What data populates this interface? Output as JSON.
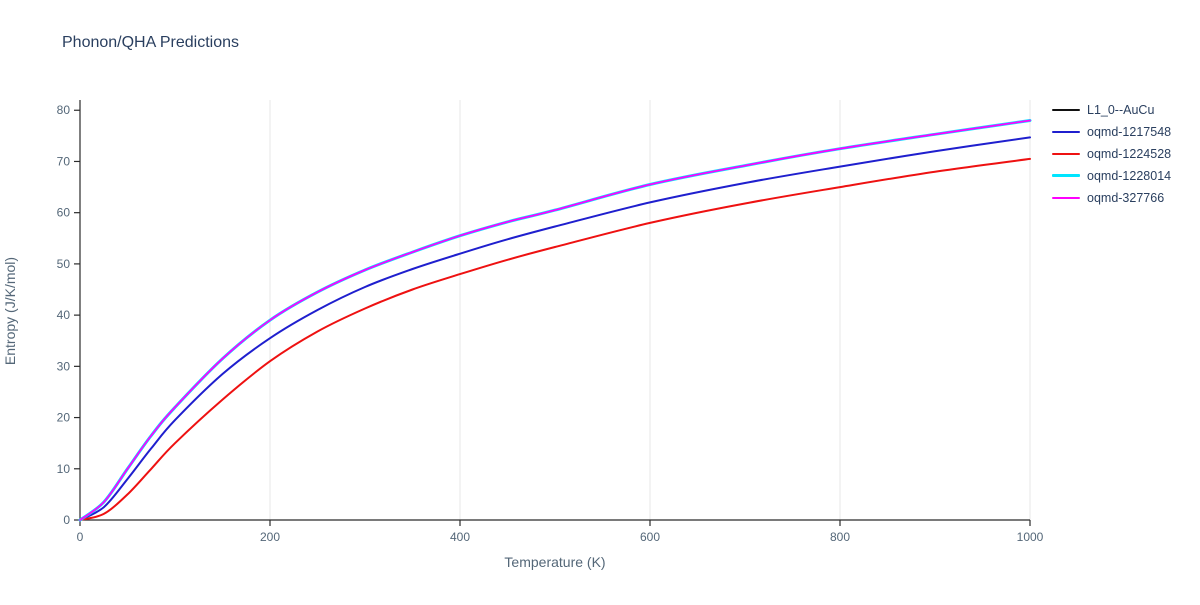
{
  "page": {
    "title": "Phonon/QHA Predictions"
  },
  "chart_data": {
    "type": "line",
    "title": "Phonon/QHA Predictions",
    "xlabel": "Temperature (K)",
    "ylabel": "Entropy (J/K/mol)",
    "xlim": [
      0,
      1000
    ],
    "ylim": [
      0,
      82
    ],
    "xticks": [
      0,
      200,
      400,
      600,
      800,
      1000
    ],
    "yticks": [
      0,
      10,
      20,
      30,
      40,
      50,
      60,
      70,
      80
    ],
    "grid": "vertical-only-light",
    "legend_position": "outside-top-right",
    "x": [
      0,
      25,
      50,
      75,
      100,
      150,
      200,
      250,
      300,
      350,
      400,
      450,
      500,
      600,
      700,
      800,
      900,
      1000
    ],
    "series": [
      {
        "name": "L1_0--AuCu",
        "color": "#111111",
        "linewidth": 2,
        "values": [
          0,
          3.5,
          10,
          16.5,
          22,
          31.5,
          39,
          44.5,
          48.8,
          52.3,
          55.5,
          58.2,
          60.5,
          65.5,
          69.2,
          72.5,
          75.3,
          78
        ]
      },
      {
        "name": "oqmd-1217548",
        "color": "#1f1fce",
        "linewidth": 2,
        "values": [
          0,
          2.5,
          8,
          14,
          19.5,
          28.5,
          35.5,
          41,
          45.5,
          49,
          52,
          54.8,
          57.3,
          62,
          65.8,
          69,
          72,
          74.7
        ]
      },
      {
        "name": "oqmd-1224528",
        "color": "#ee1111",
        "linewidth": 2,
        "values": [
          0,
          1.2,
          5,
          10,
          15,
          23.5,
          31,
          36.8,
          41.3,
          45,
          48,
          50.8,
          53.3,
          58,
          61.8,
          65,
          68,
          70.5
        ]
      },
      {
        "name": "oqmd-1228014",
        "color": "#00e5ff",
        "linewidth": 3,
        "values": [
          0,
          3.5,
          10,
          16.5,
          22,
          31.5,
          39,
          44.5,
          48.8,
          52.3,
          55.5,
          58.2,
          60.5,
          65.5,
          69.2,
          72.5,
          75.3,
          78
        ]
      },
      {
        "name": "oqmd-327766",
        "color": "#ff00ff",
        "linewidth": 1.8,
        "values": [
          0,
          3.5,
          10,
          16.5,
          22,
          31.5,
          39,
          44.5,
          48.8,
          52.3,
          55.5,
          58.2,
          60.5,
          65.5,
          69.2,
          72.5,
          75.3,
          78
        ]
      }
    ]
  }
}
